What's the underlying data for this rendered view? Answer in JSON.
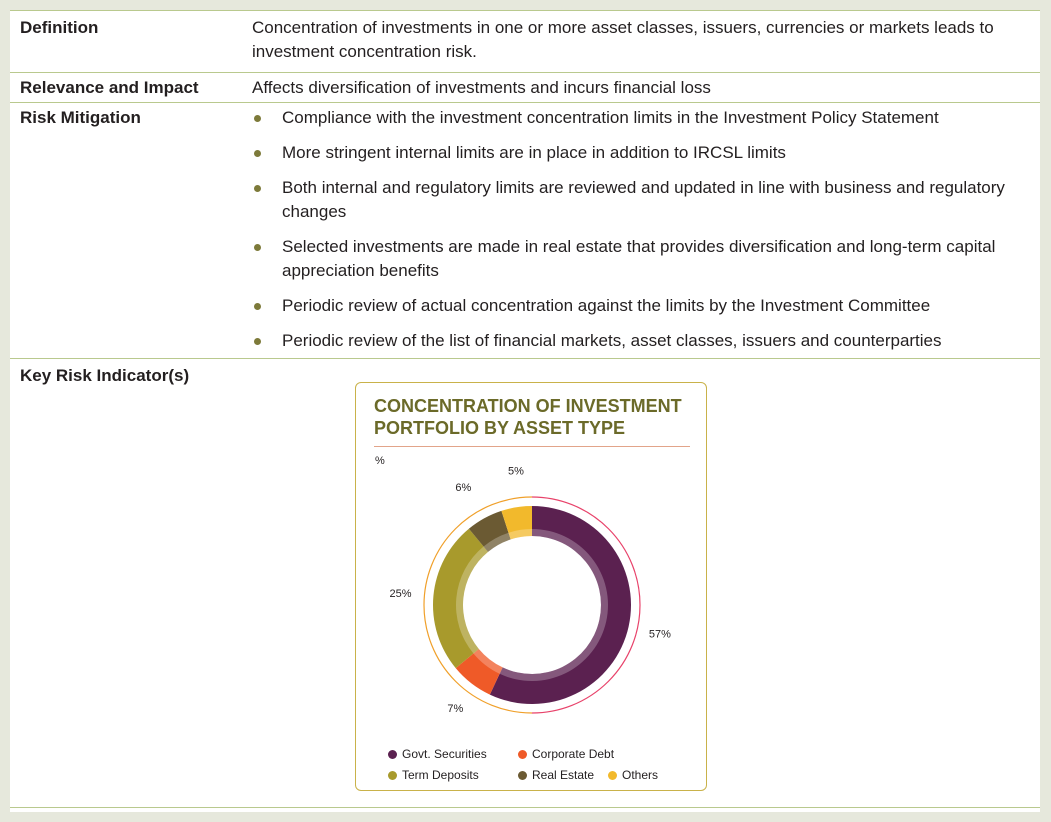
{
  "rows": {
    "definition": {
      "label": "Definition",
      "text": "Concentration of investments in one or more asset classes, issuers, currencies or markets leads to investment concentration risk."
    },
    "relevance": {
      "label": "Relevance and Impact",
      "text": "Affects diversification of investments and incurs financial loss"
    },
    "mitigation": {
      "label": "Risk Mitigation",
      "items": [
        "Compliance with the investment concentration limits in the Investment Policy Statement",
        "More stringent internal limits are in place in addition to IRCSL limits",
        "Both internal and regulatory limits are reviewed and updated in line with business and regulatory changes",
        "Selected investments are made in real estate that provides diversification and long-term capital appreciation benefits",
        "Periodic review of actual concentration against the limits by the Investment Committee",
        "Periodic review of the list of financial markets, asset classes, issuers and counterparties"
      ]
    },
    "kri": {
      "label": "Key Risk Indicator(s)"
    }
  },
  "chart_data": {
    "type": "pie",
    "title": "CONCENTRATION OF INVESTMENT PORTFOLIO BY ASSET TYPE",
    "unit": "%",
    "categories": [
      "Govt. Securities",
      "Corporate Debt",
      "Term Deposits",
      "Real Estate",
      "Others"
    ],
    "values": [
      57,
      7,
      25,
      6,
      5
    ],
    "labels": [
      "57%",
      "7%",
      "25%",
      "6%",
      "5%"
    ],
    "colors": [
      "#5b2150",
      "#ef5a28",
      "#a89a2c",
      "#6b5a33",
      "#f2b92c"
    ],
    "legend_position": "bottom"
  }
}
